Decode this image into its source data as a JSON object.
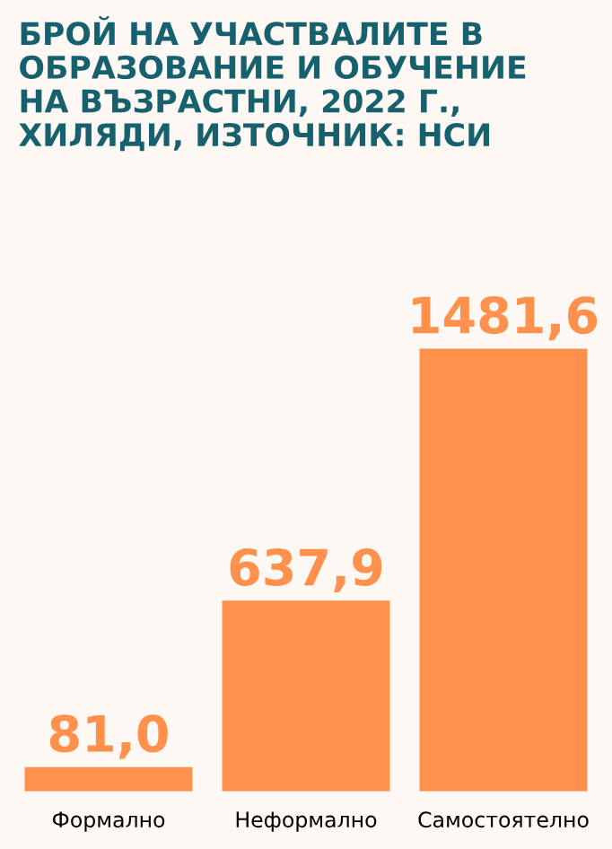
{
  "chart_data": {
    "type": "bar",
    "title": "БРОЙ НА УЧАСТВАЛИТЕ В\nОБРАЗОВАНИЕ И ОБУЧЕНИЕ\nНА ВЪЗРАСТНИ, 2022 Г.,\nХИЛЯДИ, ИЗТОЧНИК: НСИ",
    "categories": [
      "Формално",
      "Неформално",
      "Самостоятелно"
    ],
    "values": [
      81.0,
      637.9,
      1481.6
    ],
    "value_labels": [
      "81,0",
      "637,9",
      "1481,6"
    ],
    "color": "#ff914d",
    "grid": false,
    "legend": false
  }
}
